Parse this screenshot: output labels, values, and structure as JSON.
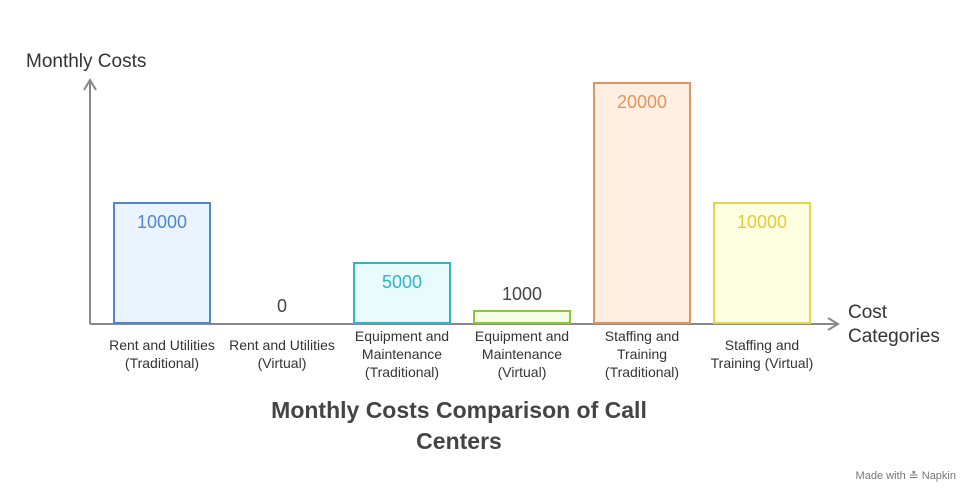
{
  "chart_data": {
    "type": "bar",
    "title": "Monthly Costs Comparison of Call Centers",
    "ylabel": "Monthly Costs",
    "xlabel": "Cost Categories",
    "ylim": [
      0,
      20000
    ],
    "grid": false,
    "categories": [
      [
        "Rent and Utilities",
        "(Traditional)"
      ],
      [
        "Rent and Utilities",
        "(Virtual)"
      ],
      [
        "Equipment and",
        "Maintenance",
        "(Traditional)"
      ],
      [
        "Equipment and",
        "Maintenance",
        "(Virtual)"
      ],
      [
        "Staffing and",
        "Training",
        "(Traditional)"
      ],
      [
        "Staffing and",
        "Training (Virtual)"
      ]
    ],
    "values": [
      10000,
      0,
      5000,
      1000,
      20000,
      10000
    ],
    "value_labels": [
      "10000",
      "0",
      "5000",
      "1000",
      "20000",
      "10000"
    ],
    "bar_fills": [
      "#ebf3fe",
      "#ffffff",
      "#e8fbfd",
      "#f5fde6",
      "#ffefe3",
      "#fefee1"
    ],
    "bar_strokes": [
      "#4f86d3",
      "#cccccc",
      "#2fb4c8",
      "#8bc934",
      "#e2955a",
      "#e5d64f"
    ],
    "label_colors": [
      "#4f86d3",
      "#444444",
      "#2fb4c8",
      "#444444",
      "#e2955a",
      "#e5c93a"
    ]
  },
  "footer": {
    "made_with": "Made with",
    "brand": "Napkin"
  }
}
